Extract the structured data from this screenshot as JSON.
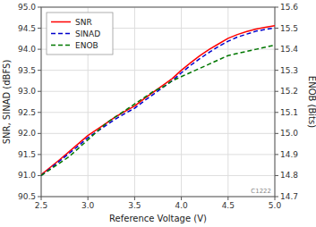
{
  "chart_data": {
    "type": "line",
    "xlabel": "Reference Voltage (V)",
    "ylabel": "SNR, SINAD (dBFS)",
    "y2label": "ENOB (Bits)",
    "x": [
      2.5,
      2.6,
      2.7,
      2.8,
      2.9,
      3.0,
      3.1,
      3.2,
      3.3,
      3.4,
      3.5,
      3.6,
      3.7,
      3.8,
      3.9,
      4.0,
      4.1,
      4.2,
      4.3,
      4.4,
      4.5,
      4.6,
      4.7,
      4.8,
      4.9,
      5.0
    ],
    "xlim": [
      2.5,
      5.0
    ],
    "xticks": [
      2.5,
      {
        "value": 3.0,
        "label": "3.0"
      },
      3.5,
      {
        "value": 4.0,
        "label": "4.0"
      },
      4.5,
      {
        "value": 5.0,
        "label": "5.0"
      }
    ],
    "ylim": [
      90.5,
      95.0
    ],
    "yticks": [
      90.5,
      {
        "value": 91.0,
        "label": "91.0"
      },
      91.5,
      {
        "value": 92.0,
        "label": "92.0"
      },
      92.5,
      {
        "value": 93.0,
        "label": "93.0"
      },
      93.5,
      {
        "value": 94.0,
        "label": "94.0"
      },
      94.5,
      {
        "value": 95.0,
        "label": "95.0"
      }
    ],
    "y2lim": [
      14.7,
      15.6
    ],
    "y2ticks": [
      14.7,
      14.8,
      14.9,
      {
        "value": 15.0,
        "label": "15.0"
      },
      15.1,
      15.2,
      15.3,
      15.4,
      15.5,
      15.6
    ],
    "series": [
      {
        "name": "SNR",
        "color": "#ff0000",
        "line_style": "solid",
        "values": [
          91.02,
          91.2,
          91.38,
          91.57,
          91.76,
          91.95,
          92.1,
          92.25,
          92.4,
          92.53,
          92.65,
          92.82,
          92.98,
          93.14,
          93.3,
          93.5,
          93.68,
          93.85,
          94.0,
          94.13,
          94.26,
          94.35,
          94.42,
          94.48,
          94.52,
          94.56
        ]
      },
      {
        "name": "SINAD",
        "color": "#0000cc",
        "line_style": "dashed",
        "values": [
          91.0,
          91.17,
          91.35,
          91.53,
          91.71,
          91.9,
          92.05,
          92.2,
          92.35,
          92.48,
          92.6,
          92.77,
          92.93,
          93.09,
          93.25,
          93.44,
          93.62,
          93.78,
          93.93,
          94.07,
          94.19,
          94.29,
          94.36,
          94.43,
          94.47,
          94.51
        ]
      },
      {
        "name": "ENOB",
        "color": "#007700",
        "line_style": "dashed",
        "axis": "y2",
        "values": [
          14.8,
          14.83,
          14.86,
          14.89,
          14.93,
          14.97,
          15.01,
          15.05,
          15.08,
          15.11,
          15.14,
          15.17,
          15.2,
          15.22,
          15.25,
          15.27,
          15.29,
          15.31,
          15.33,
          15.35,
          15.37,
          15.38,
          15.39,
          15.4,
          15.41,
          15.42
        ]
      }
    ],
    "grid": true,
    "legend": "upper-left",
    "annotations": [
      "C1222"
    ]
  }
}
